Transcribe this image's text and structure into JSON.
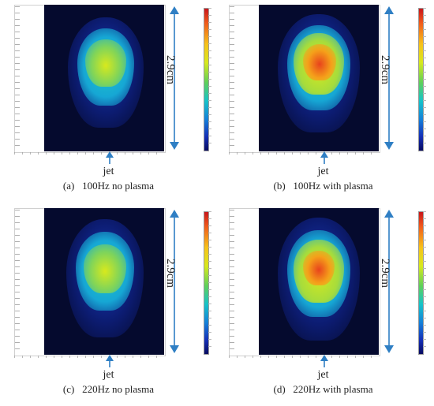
{
  "panels": [
    {
      "caption": "(a)   100Hz no plasma",
      "jet_label": "jet",
      "dimension_label": "2.9cm",
      "plasma": false
    },
    {
      "caption": "(b)   100Hz with plasma",
      "jet_label": "jet",
      "dimension_label": "2.9cm",
      "plasma": true
    },
    {
      "caption": "(c)   220Hz no plasma",
      "jet_label": "jet",
      "dimension_label": "2.9cm",
      "plasma": false
    },
    {
      "caption": "(d)   220Hz with plasma",
      "jet_label": "jet",
      "dimension_label": "2.9cm",
      "plasma": true
    }
  ],
  "colors": {
    "background_dark": "#050a2e",
    "arrow": "#2f7fc4",
    "colormap": [
      "#c8151b",
      "#f7c21a",
      "#5fd05a",
      "#16c3c9",
      "#1530b8",
      "#070a60"
    ]
  }
}
